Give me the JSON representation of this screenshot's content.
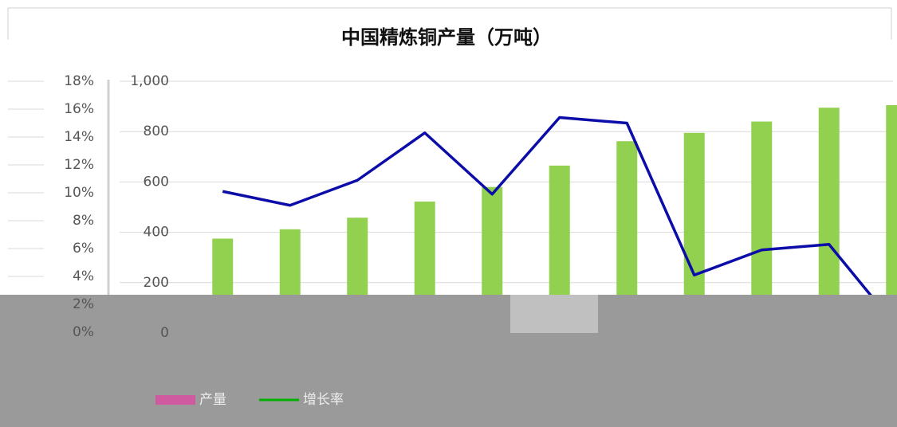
{
  "chart_data": {
    "type": "bar",
    "title": "中国精炼铜产量（万吨）",
    "categories": [
      null,
      null,
      null,
      null,
      null,
      null,
      null,
      null,
      null,
      null,
      null
    ],
    "series": [
      {
        "name": "产量",
        "type": "bar",
        "color": "#92d050",
        "values": [
          375,
          412,
          458,
          522,
          580,
          665,
          762,
          795,
          840,
          895,
          905
        ]
      },
      {
        "name": "增长率",
        "type": "line",
        "axis": "y2",
        "color": "#0c0ca8",
        "values": [
          10.1,
          9.1,
          10.9,
          14.3,
          9.9,
          15.4,
          15.0,
          4.1,
          5.9,
          6.3,
          0.4
        ]
      }
    ],
    "ylim": [
      0,
      1000
    ],
    "yticks": [
      0,
      200,
      400,
      600,
      800,
      {
        "value": 1000,
        "label": "1,000"
      }
    ],
    "y2lim": [
      0,
      18
    ],
    "y2ticks": [
      {
        "value": 0,
        "label": "0%"
      },
      {
        "value": 2,
        "label": "2%"
      },
      {
        "value": 4,
        "label": "4%"
      },
      {
        "value": 6,
        "label": "6%"
      },
      {
        "value": 8,
        "label": "8%"
      },
      {
        "value": 10,
        "label": "10%"
      },
      {
        "value": 12,
        "label": "12%"
      },
      {
        "value": 14,
        "label": "14%"
      },
      {
        "value": 16,
        "label": "16%"
      },
      {
        "value": 18,
        "label": "18%"
      }
    ],
    "grid": true,
    "legend": {
      "position": "bottom",
      "colors": [
        "#d05aa0",
        "#00b000"
      ]
    }
  }
}
